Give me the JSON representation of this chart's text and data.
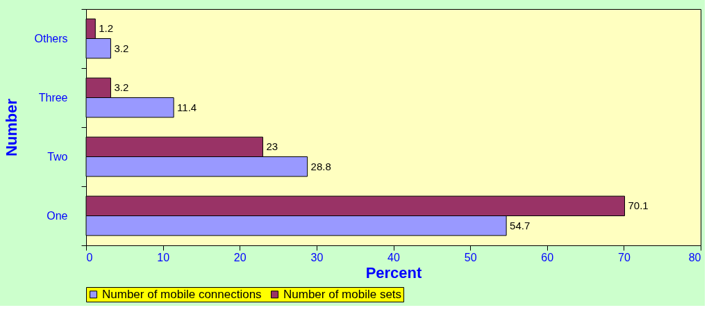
{
  "chart_data": {
    "type": "bar",
    "orientation": "horizontal",
    "xlabel": "Percent",
    "ylabel": "Number",
    "categories": [
      "Others",
      "Three",
      "Two",
      "One"
    ],
    "series": [
      {
        "name": "Number of mobile connections",
        "color": "#9999ff",
        "values": [
          3.2,
          11.4,
          28.8,
          54.7
        ]
      },
      {
        "name": "Number of mobile sets",
        "color": "#993366",
        "values": [
          1.2,
          3.2,
          23,
          70.1
        ]
      }
    ],
    "xlim": [
      0,
      80
    ],
    "xticks": [
      0,
      10,
      20,
      30,
      40,
      50,
      60,
      70,
      80
    ],
    "data_labels": true,
    "grid": false,
    "legend": "bottom"
  }
}
